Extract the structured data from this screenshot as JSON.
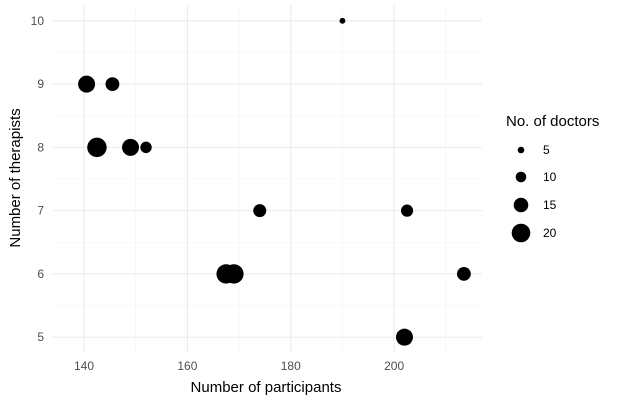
{
  "chart_data": {
    "type": "scatter",
    "title": "",
    "xlabel": "Number of participants",
    "ylabel": "Number of therapists",
    "xlim": [
      134,
      217
    ],
    "ylim": [
      4.75,
      10.25
    ],
    "xticks": [
      140,
      160,
      180,
      200
    ],
    "yticks": [
      5,
      6,
      7,
      8,
      9,
      10
    ],
    "grid": true,
    "size_legend": {
      "title": "No. of doctors",
      "placement": "right",
      "values": [
        5,
        10,
        15,
        20
      ]
    },
    "points": [
      {
        "x": 190,
        "y": 10,
        "size": 4
      },
      {
        "x": 140.5,
        "y": 9,
        "size": 18
      },
      {
        "x": 145.5,
        "y": 9,
        "size": 14
      },
      {
        "x": 142.5,
        "y": 8,
        "size": 21
      },
      {
        "x": 149,
        "y": 8,
        "size": 18
      },
      {
        "x": 152,
        "y": 8,
        "size": 11
      },
      {
        "x": 174,
        "y": 7,
        "size": 13
      },
      {
        "x": 202.5,
        "y": 7,
        "size": 12
      },
      {
        "x": 167.5,
        "y": 6,
        "size": 21
      },
      {
        "x": 169,
        "y": 6,
        "size": 21
      },
      {
        "x": 213.5,
        "y": 6,
        "size": 14
      },
      {
        "x": 202,
        "y": 5,
        "size": 18
      }
    ]
  }
}
